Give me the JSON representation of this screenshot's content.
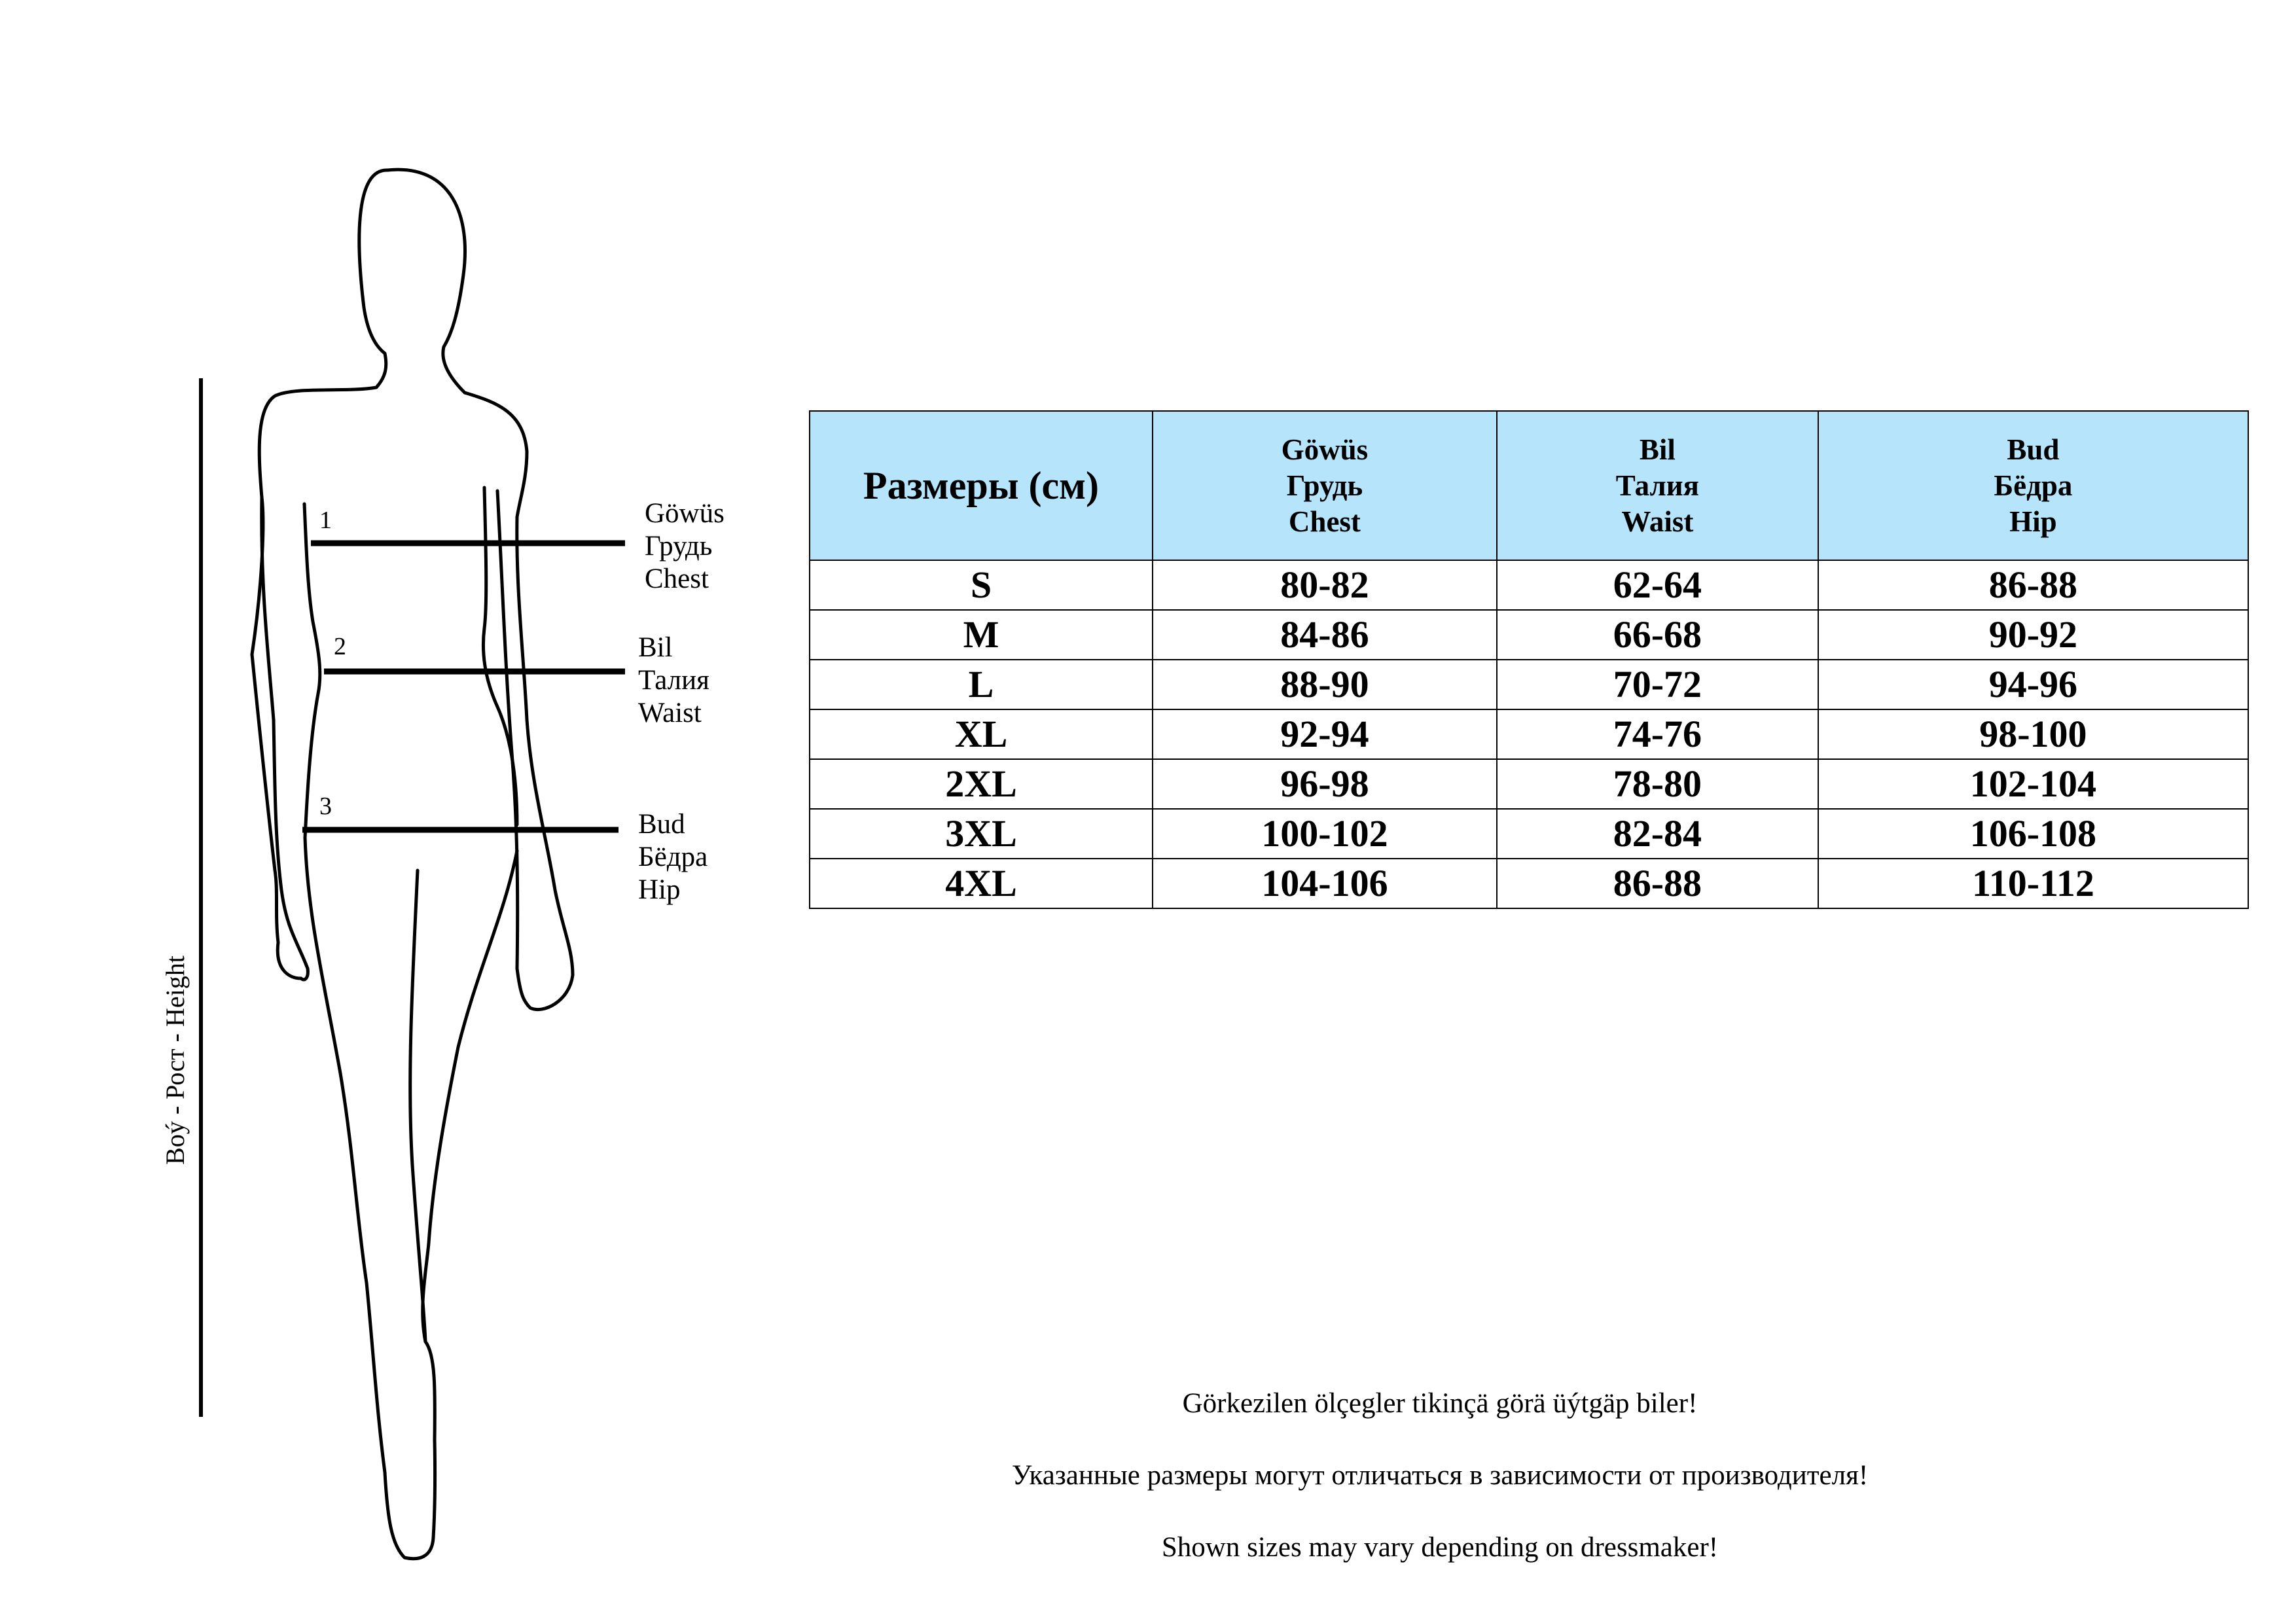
{
  "figure": {
    "height_label": "Boý  -  Рост  -  Height",
    "measurements": [
      {
        "number": "1",
        "lines": [
          "Göwüs",
          "Грудь",
          "Chest"
        ]
      },
      {
        "number": "2",
        "lines": [
          "Bil",
          "Талия",
          "Waist"
        ]
      },
      {
        "number": "3",
        "lines": [
          "Bud",
          "Бёдра",
          "Hip"
        ]
      }
    ]
  },
  "table": {
    "size_header": "Размеры (см)",
    "columns": [
      {
        "lines": [
          "Göwüs",
          "Грудь",
          "Chest"
        ]
      },
      {
        "lines": [
          "Bil",
          "Талия",
          "Waist"
        ]
      },
      {
        "lines": [
          "Bud",
          "Бёдра",
          "Hip"
        ]
      }
    ],
    "rows": [
      {
        "size": "S",
        "chest": "80-82",
        "waist": "62-64",
        "hip": "86-88"
      },
      {
        "size": "M",
        "chest": "84-86",
        "waist": "66-68",
        "hip": "90-92"
      },
      {
        "size": "L",
        "chest": "88-90",
        "waist": "70-72",
        "hip": "94-96"
      },
      {
        "size": "XL",
        "chest": "92-94",
        "waist": "74-76",
        "hip": "98-100"
      },
      {
        "size": "2XL",
        "chest": "96-98",
        "waist": "78-80",
        "hip": "102-104"
      },
      {
        "size": "3XL",
        "chest": "100-102",
        "waist": "82-84",
        "hip": "106-108"
      },
      {
        "size": "4XL",
        "chest": "104-106",
        "waist": "86-88",
        "hip": "110-112"
      }
    ]
  },
  "notes": [
    "Görkezilen ölçegler tikinçä görä üýtgäp biler!",
    "Указанные размеры могут отличаться в зависимости от производителя!",
    "Shown sizes may vary depending on dressmaker!"
  ],
  "colors": {
    "header_bg": "#b5e4fb",
    "lines": "#000000"
  }
}
